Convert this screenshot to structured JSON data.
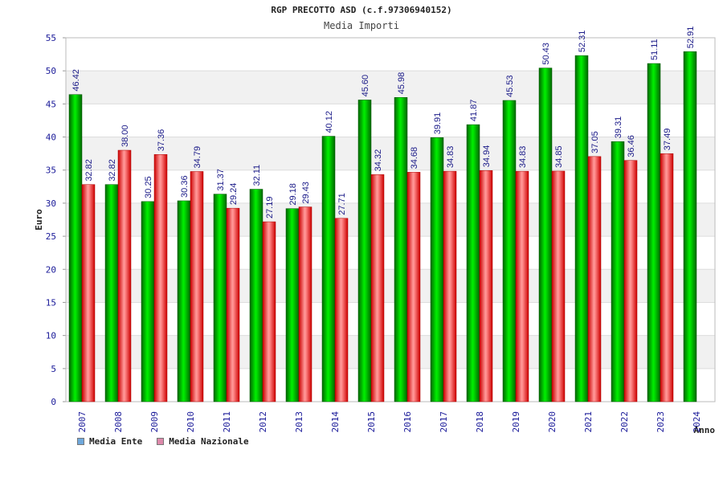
{
  "chart_data": {
    "type": "bar",
    "title": "RGP PRECOTTO ASD (c.f.97306940152)",
    "subtitle": "Media Importi",
    "ylabel": "Euro",
    "xlabel": "Anno",
    "ylim": [
      0,
      55
    ],
    "yticks": [
      0,
      5,
      10,
      15,
      20,
      25,
      30,
      35,
      40,
      45,
      50,
      55
    ],
    "grid": true,
    "legend_position": "bottom-left",
    "categories": [
      "2007",
      "2008",
      "2009",
      "2010",
      "2011",
      "2012",
      "2013",
      "2014",
      "2015",
      "2016",
      "2017",
      "2018",
      "2019",
      "2020",
      "2021",
      "2022",
      "2023",
      "2024"
    ],
    "series": [
      {
        "name": "Media Ente",
        "color": "#00bb00",
        "legend_color": "#6fa8dc",
        "values": [
          46.42,
          32.82,
          30.25,
          30.36,
          31.37,
          32.11,
          29.18,
          40.12,
          45.6,
          45.98,
          39.91,
          41.87,
          45.53,
          50.43,
          52.31,
          39.31,
          51.11,
          52.91
        ],
        "labels": [
          "46.42",
          "32.82",
          "30.25",
          "30.36",
          "31.37",
          "32.11",
          "29.18",
          "40.12",
          "45.60",
          "45.98",
          "39.91",
          "41.87",
          "45.53",
          "50.43",
          "52.31",
          "39.31",
          "51.11",
          "52.91"
        ]
      },
      {
        "name": "Media Nazionale",
        "color": "#ee2222",
        "legend_color": "#dd88aa",
        "values": [
          32.82,
          38.0,
          37.36,
          34.79,
          29.24,
          27.19,
          29.43,
          27.71,
          34.32,
          34.68,
          34.83,
          34.94,
          34.83,
          34.85,
          37.05,
          36.46,
          37.49,
          null
        ],
        "labels": [
          "32.82",
          "38.00",
          "37.36",
          "34.79",
          "29.24",
          "27.19",
          "29.43",
          "27.71",
          "34.32",
          "34.68",
          "34.83",
          "34.94",
          "34.83",
          "34.85",
          "37.05",
          "36.46",
          "37.49",
          null
        ]
      }
    ]
  }
}
